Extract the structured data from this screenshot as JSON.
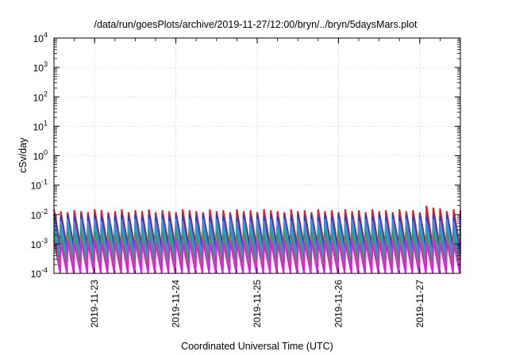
{
  "chart_data": {
    "type": "line",
    "title": "/data/run/goesPlots/archive/2019-11-27/12:00/bryn/../bryn/5daysMars.plot",
    "xlabel": "Coordinated Universal Time (UTC)",
    "ylabel": "cSv/day",
    "y_scale": "log",
    "ylim": [
      0.0001,
      10000
    ],
    "y_ticks": [
      {
        "base": "10",
        "exp": "-4",
        "value": 0.0001
      },
      {
        "base": "10",
        "exp": "-3",
        "value": 0.001
      },
      {
        "base": "10",
        "exp": "-2",
        "value": 0.01
      },
      {
        "base": "10",
        "exp": "-1",
        "value": 0.1
      },
      {
        "base": "10",
        "exp": "0",
        "value": 1
      },
      {
        "base": "10",
        "exp": "1",
        "value": 10
      },
      {
        "base": "10",
        "exp": "2",
        "value": 100
      },
      {
        "base": "10",
        "exp": "3",
        "value": 1000
      },
      {
        "base": "10",
        "exp": "4",
        "value": 10000
      }
    ],
    "xlim": [
      "2019-11-22T12:00",
      "2019-11-27T12:00"
    ],
    "x_ticks": [
      "2019-11-23",
      "2019-11-24",
      "2019-11-25",
      "2019-11-26",
      "2019-11-27"
    ],
    "grid": true,
    "legend": "none",
    "sawtooth_period_hours": 2,
    "series": [
      {
        "color": "#e41a1c",
        "peaks": [
          0.015,
          0.013,
          0.012,
          0.014,
          0.013,
          0.012,
          0.015,
          0.014,
          0.012,
          0.013,
          0.015,
          0.012,
          0.014,
          0.013,
          0.015,
          0.012,
          0.014,
          0.013,
          0.012,
          0.015,
          0.014,
          0.013,
          0.012,
          0.015,
          0.013,
          0.014,
          0.012,
          0.015,
          0.013,
          0.014,
          0.012,
          0.015,
          0.014,
          0.013,
          0.012,
          0.015,
          0.013,
          0.014,
          0.012,
          0.015,
          0.013,
          0.014,
          0.012,
          0.015,
          0.013,
          0.014,
          0.012,
          0.015,
          0.013,
          0.014,
          0.012,
          0.015,
          0.013,
          0.014,
          0.012,
          0.02,
          0.017,
          0.016,
          0.013,
          0.015,
          0.014
        ],
        "troughs": [
          0.0009,
          0.0008
        ]
      },
      {
        "color": "#1f3fd6",
        "peaks": [
          0.01,
          0.009
        ],
        "troughs": [
          0.0006,
          0.0005
        ]
      },
      {
        "color": "#3b8de8",
        "peaks": [
          0.007,
          0.006
        ],
        "troughs": [
          0.0004,
          0.00035
        ]
      },
      {
        "color": "#17a9b8",
        "peaks": [
          0.004,
          0.0035
        ],
        "troughs": [
          0.00025,
          0.0002
        ]
      },
      {
        "color": "#2e9c4a",
        "peaks": [
          0.0025,
          0.002
        ],
        "troughs": [
          0.0002,
          0.00018
        ]
      },
      {
        "color": "#7d7d7d",
        "peaks": [
          0.0018,
          0.0015
        ],
        "troughs": [
          0.00015,
          0.00012
        ]
      },
      {
        "color": "#e020d8",
        "peaks": [
          0.0013,
          0.0011
        ],
        "troughs": [
          8e-05,
          7e-05
        ]
      }
    ]
  }
}
